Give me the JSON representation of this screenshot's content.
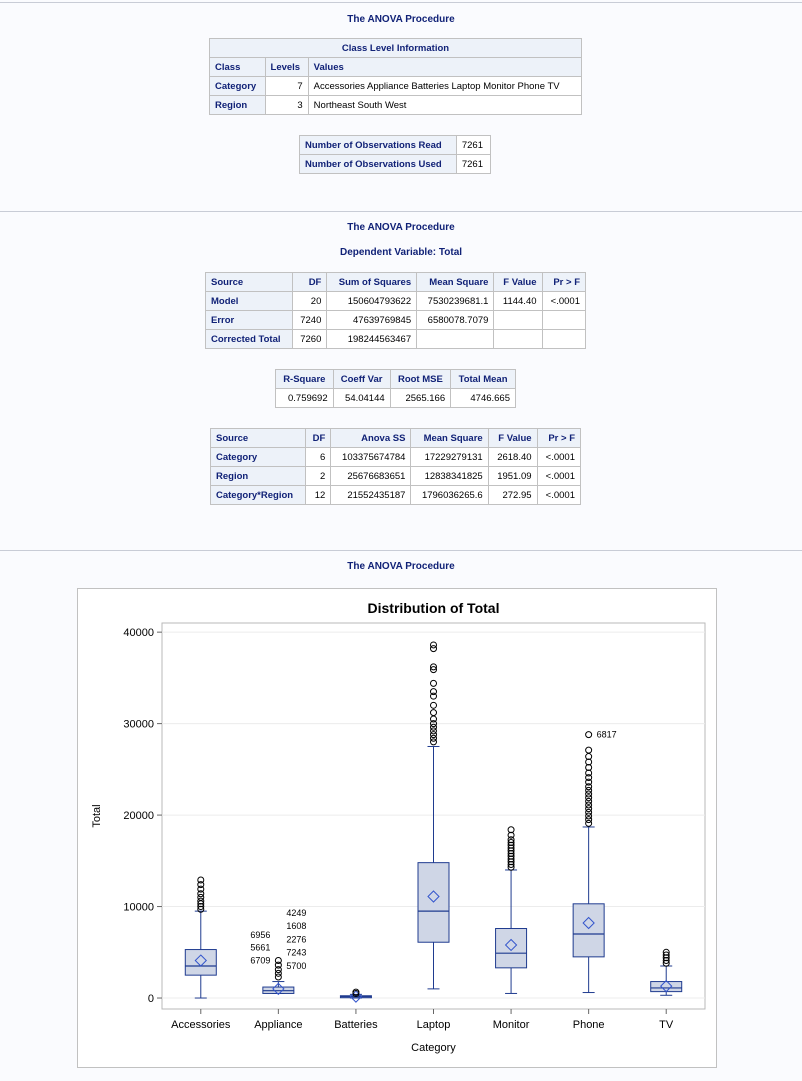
{
  "section1": {
    "title": "The ANOVA Procedure",
    "class_level": {
      "caption": "Class Level Information",
      "headers": [
        "Class",
        "Levels",
        "Values"
      ],
      "rows": [
        [
          "Category",
          "7",
          "Accessories Appliance Batteries Laptop Monitor Phone TV"
        ],
        [
          "Region",
          "3",
          "Northeast South West"
        ]
      ]
    },
    "observations": {
      "rows": [
        [
          "Number of Observations Read",
          "7261"
        ],
        [
          "Number of Observations Used",
          "7261"
        ]
      ]
    }
  },
  "section2": {
    "title": "The ANOVA Procedure",
    "subtitle": "Dependent Variable: Total",
    "anova": {
      "headers": [
        "Source",
        "DF",
        "Sum of Squares",
        "Mean Square",
        "F Value",
        "Pr > F"
      ],
      "rows": [
        [
          "Model",
          "20",
          "150604793622",
          "7530239681.1",
          "1144.40",
          "<.0001"
        ],
        [
          "Error",
          "7240",
          "47639769845",
          "6580078.7079",
          "",
          ""
        ],
        [
          "Corrected Total",
          "7260",
          "198244563467",
          "",
          "",
          ""
        ]
      ]
    },
    "fit": {
      "headers": [
        "R-Square",
        "Coeff Var",
        "Root MSE",
        "Total Mean"
      ],
      "rows": [
        [
          "0.759692",
          "54.04144",
          "2565.166",
          "4746.665"
        ]
      ]
    },
    "type3": {
      "headers": [
        "Source",
        "DF",
        "Anova SS",
        "Mean Square",
        "F Value",
        "Pr > F"
      ],
      "rows": [
        [
          "Category",
          "6",
          "103375674784",
          "17229279131",
          "2618.40",
          "<.0001"
        ],
        [
          "Region",
          "2",
          "25676683651",
          "12838341825",
          "1951.09",
          "<.0001"
        ],
        [
          "Category*Region",
          "12",
          "21552435187",
          "1796036265.6",
          "272.95",
          "<.0001"
        ]
      ]
    }
  },
  "section3": {
    "title": "The ANOVA Procedure"
  },
  "chart_data": {
    "type": "box",
    "title": "Distribution of Total",
    "xlabel": "Category",
    "ylabel": "Total",
    "ylim": [
      -1200,
      41000
    ],
    "yticks": [
      0,
      10000,
      20000,
      30000,
      40000
    ],
    "ytick_labels": [
      "0",
      "10000",
      "20000",
      "30000",
      "40000"
    ],
    "grid": true,
    "colors": {
      "box_fill": "#cfd6e6",
      "line": "#1f3b8f",
      "outlier": "#000000",
      "mean_marker": "#3355cc"
    },
    "categories": [
      "Accessories",
      "Appliance",
      "Batteries",
      "Laptop",
      "Monitor",
      "Phone",
      "TV"
    ],
    "boxes": [
      {
        "category": "Accessories",
        "min": 0,
        "q1": 2500,
        "median": 3500,
        "q3": 5300,
        "whisker_high": 9500,
        "mean": 4100,
        "outliers": [
          9700,
          10000,
          10300,
          10600,
          11000,
          11400,
          11900,
          12400,
          12900
        ]
      },
      {
        "category": "Appliance",
        "min": 500,
        "q1": 500,
        "median": 800,
        "q3": 1200,
        "whisker_high": 1800,
        "mean": 1000,
        "outliers": [
          2300,
          2700,
          3100,
          3600,
          4100
        ]
      },
      {
        "category": "Batteries",
        "min": 0,
        "q1": 50,
        "median": 150,
        "q3": 250,
        "whisker_high": 400,
        "mean": 150,
        "outliers": [
          500,
          650
        ]
      },
      {
        "category": "Laptop",
        "min": 1000,
        "q1": 6100,
        "median": 9500,
        "q3": 14800,
        "whisker_high": 27500,
        "mean": 11100,
        "outliers": [
          28000,
          28400,
          28800,
          29200,
          29600,
          30000,
          30500,
          31200,
          32000,
          33000,
          33500,
          34400,
          35900,
          36200,
          38200,
          38600
        ]
      },
      {
        "category": "Monitor",
        "min": 500,
        "q1": 3300,
        "median": 4900,
        "q3": 7600,
        "whisker_high": 14000,
        "mean": 5800,
        "outliers": [
          14300,
          14600,
          14900,
          15200,
          15500,
          15800,
          16100,
          16400,
          16700,
          17000,
          17300,
          17800,
          18400
        ]
      },
      {
        "category": "Phone",
        "min": 600,
        "q1": 4500,
        "median": 7000,
        "q3": 10300,
        "whisker_high": 18700,
        "mean": 8200,
        "outliers": [
          19100,
          19500,
          19900,
          20300,
          20700,
          21100,
          21500,
          21900,
          22300,
          22700,
          23100,
          23600,
          24100,
          24600,
          25200,
          25800,
          26400,
          27100,
          28800
        ]
      },
      {
        "category": "TV",
        "min": 300,
        "q1": 700,
        "median": 1100,
        "q3": 1800,
        "whisker_high": 3500,
        "mean": 1300,
        "outliers": [
          3800,
          4100,
          4400,
          4700,
          5000
        ]
      }
    ],
    "annotations": [
      {
        "text": "6817",
        "category": "Phone",
        "y": 28800,
        "side": "right"
      },
      {
        "text": "4249",
        "category": "Appliance",
        "y": 9300,
        "side": "right"
      },
      {
        "text": "1608",
        "category": "Appliance",
        "y": 7900,
        "side": "right"
      },
      {
        "text": "2276",
        "category": "Appliance",
        "y": 6400,
        "side": "right"
      },
      {
        "text": "7243",
        "category": "Appliance",
        "y": 5000,
        "side": "right"
      },
      {
        "text": "5700",
        "category": "Appliance",
        "y": 3500,
        "side": "right"
      },
      {
        "text": "6956",
        "category": "Appliance",
        "y": 6900,
        "side": "left"
      },
      {
        "text": "5661",
        "category": "Appliance",
        "y": 5500,
        "side": "left"
      },
      {
        "text": "6709",
        "category": "Appliance",
        "y": 4100,
        "side": "left"
      }
    ]
  }
}
